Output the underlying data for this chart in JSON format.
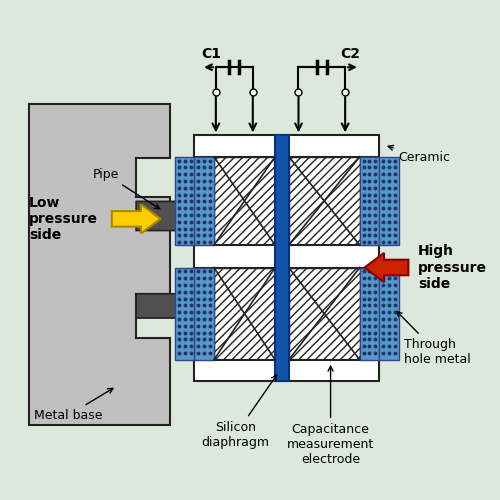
{
  "bg_color": "#dce8dc",
  "colors": {
    "white": "#ffffff",
    "light_gray": "#c0c0c0",
    "mid_gray": "#a0a0a0",
    "dark_gray": "#505050",
    "blue_strip": "#5599cc",
    "blue_dark": "#1155aa",
    "dot_color": "#223366",
    "black": "#000000",
    "yellow": "#ffcc00",
    "red": "#cc2200",
    "outline": "#222222"
  },
  "labels": {
    "C1": "C1",
    "C2": "C2",
    "Ceramic": "Ceramic",
    "Pipe": "Pipe",
    "Low_pressure": "Low\npressure\nside",
    "High_pressure": "High\npressure\nside",
    "Metal_base": "Metal base",
    "Silicon_diaphragm": "Silicon\ndiaphragm",
    "Capacitance": "Capacitance\nmeasurement\nelectrode",
    "Through_hole": "Through\nhole metal"
  }
}
